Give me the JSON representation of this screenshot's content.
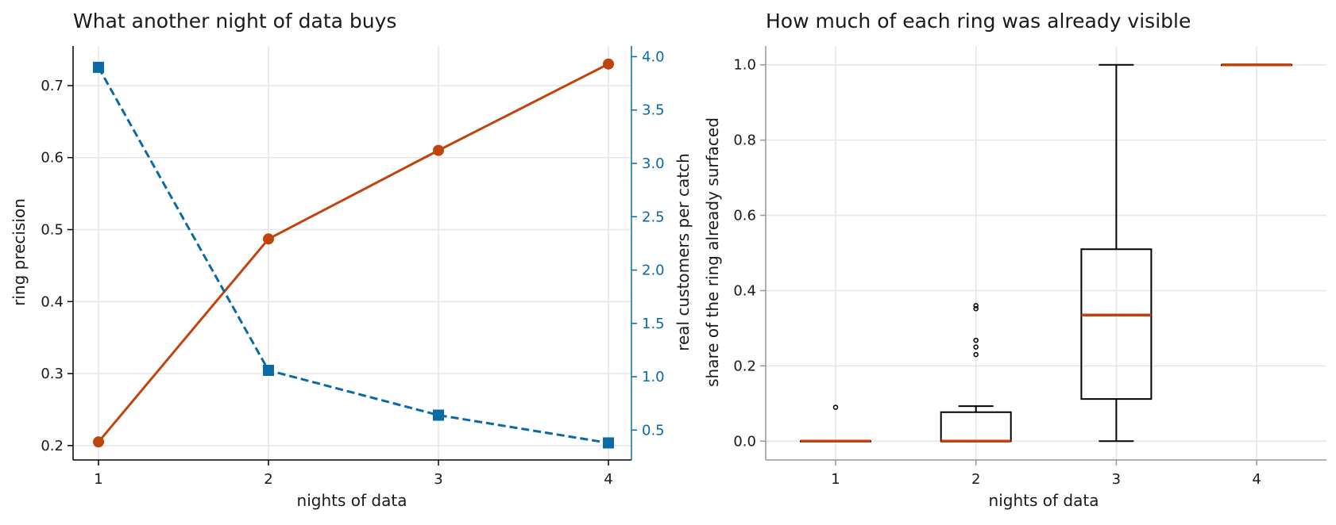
{
  "colors": {
    "precision": "#c0440e",
    "customers": "#0a6aa5",
    "box": "#000000",
    "median": "#c0440e",
    "grid": "#e6e6e6",
    "axis": "#000000",
    "axis_right_panel": "#999999"
  },
  "chart_data": [
    {
      "type": "line",
      "title": "What another night of data buys",
      "xlabel": "nights of data",
      "ylabel": "ring precision",
      "y2label": "real customers per catch",
      "x": [
        1,
        2,
        3,
        4
      ],
      "xticks": [
        "1",
        "2",
        "3",
        "4"
      ],
      "ylim": [
        0.18,
        0.755
      ],
      "yticks": [
        "0.2",
        "0.3",
        "0.4",
        "0.5",
        "0.6",
        "0.7"
      ],
      "y2lim": [
        0.22,
        4.1
      ],
      "y2ticks": [
        "0.5",
        "1.0",
        "1.5",
        "2.0",
        "2.5",
        "3.0",
        "3.5",
        "4.0"
      ],
      "grid": true,
      "series": [
        {
          "axis": "left",
          "style": "solid",
          "marker": "circle",
          "values": [
            0.205,
            0.487,
            0.61,
            0.73
          ]
        },
        {
          "axis": "right",
          "style": "dashed",
          "marker": "square",
          "values": [
            3.9,
            1.06,
            0.64,
            0.38
          ]
        }
      ]
    },
    {
      "type": "box",
      "title": "How much of each ring was already visible",
      "xlabel": "nights of data",
      "ylabel": "share of the ring already surfaced",
      "categories": [
        "1",
        "2",
        "3",
        "4"
      ],
      "ylim": [
        -0.05,
        1.05
      ],
      "yticks": [
        "0.0",
        "0.2",
        "0.4",
        "0.6",
        "0.8",
        "1.0"
      ],
      "grid": true,
      "boxes": [
        {
          "min": 0.0,
          "q1": 0.0,
          "median": 0.0,
          "q3": 0.0,
          "max": 0.0,
          "outliers": [
            0.09
          ]
        },
        {
          "min": 0.0,
          "q1": 0.0,
          "median": 0.0,
          "q3": 0.077,
          "max": 0.093,
          "outliers": [
            0.23,
            0.25,
            0.268,
            0.352,
            0.36
          ]
        },
        {
          "min": 0.0,
          "q1": 0.112,
          "median": 0.335,
          "q3": 0.51,
          "max": 1.0,
          "outliers": []
        },
        {
          "min": 1.0,
          "q1": 1.0,
          "median": 1.0,
          "q3": 1.0,
          "max": 1.0,
          "outliers": []
        }
      ]
    }
  ]
}
